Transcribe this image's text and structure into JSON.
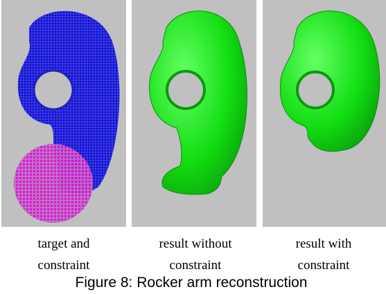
{
  "figure": {
    "panels": [
      {
        "caption_lines": [
          "target and",
          "constraint"
        ]
      },
      {
        "caption_lines": [
          "result without",
          "constraint"
        ]
      },
      {
        "caption_lines": [
          "result with",
          "constraint"
        ]
      }
    ],
    "caption": "Figure 8: Rocker arm reconstruction"
  }
}
